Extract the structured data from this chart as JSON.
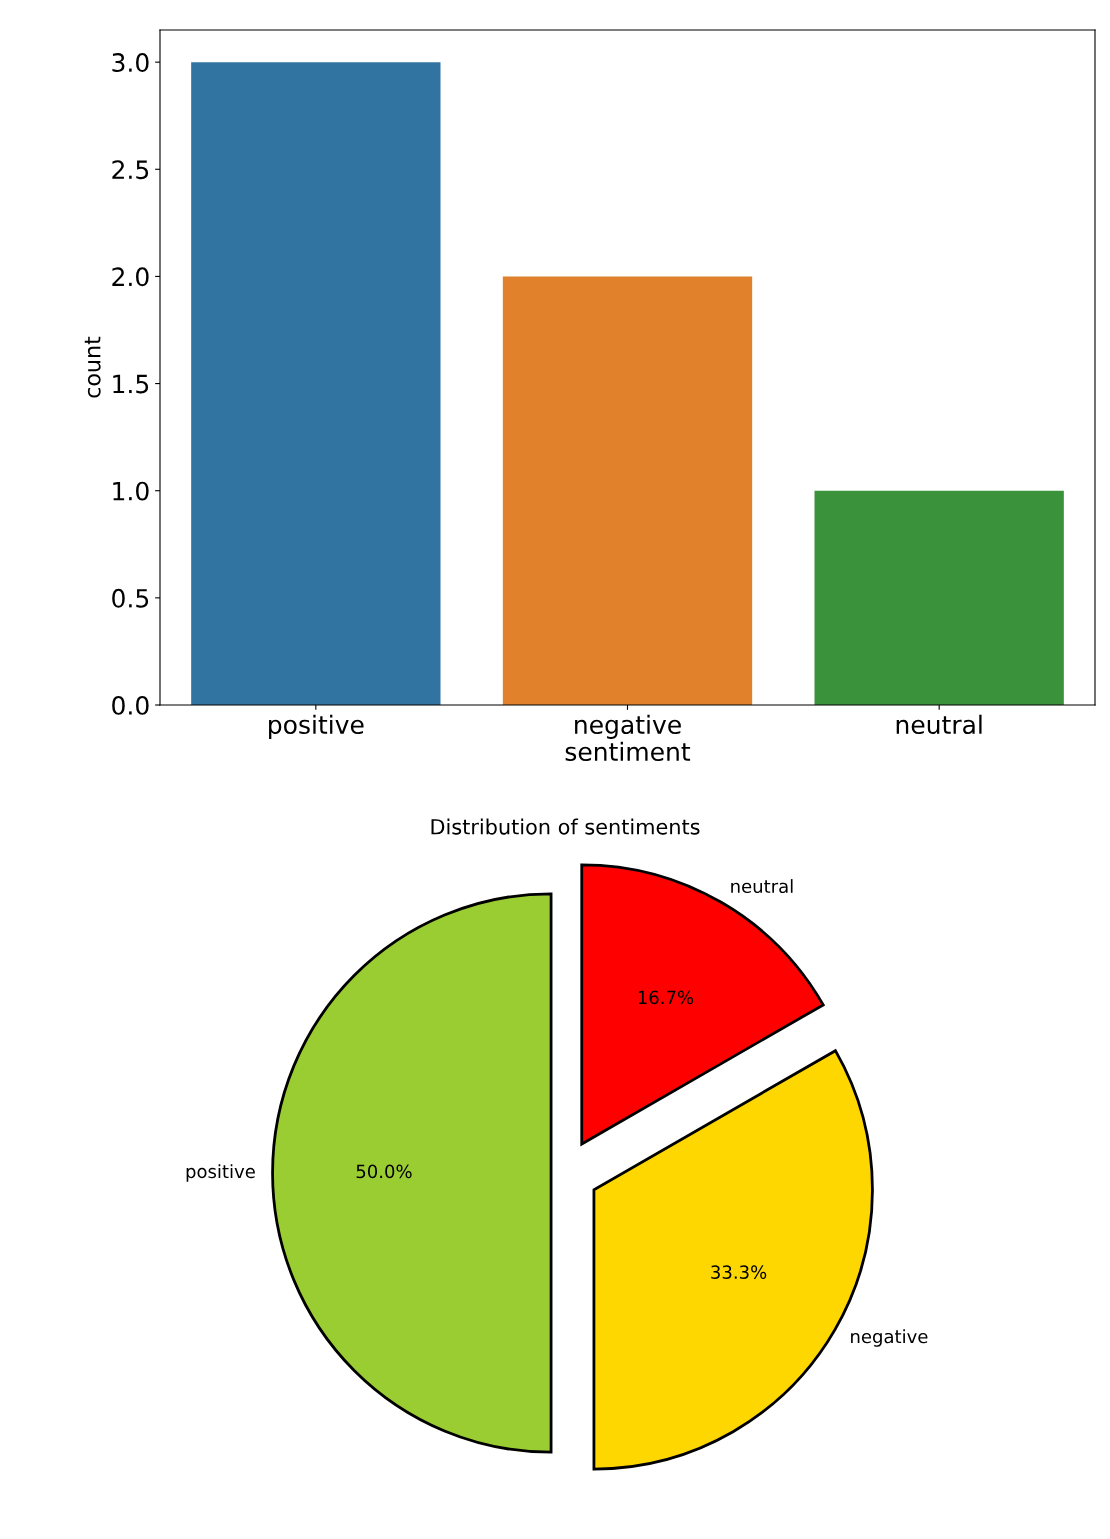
{
  "chart_data": [
    {
      "type": "bar",
      "xlabel": "sentiment",
      "ylabel": "count",
      "categories": [
        "positive",
        "negative",
        "neutral"
      ],
      "values": [
        3,
        2,
        1
      ],
      "colors": [
        "#3274a1",
        "#e1812c",
        "#3a923a"
      ],
      "ylim": [
        0,
        3.15
      ],
      "yticks": [
        {
          "value": 0,
          "label": "0.0"
        },
        {
          "value": 0.5,
          "label": "0.5"
        },
        {
          "value": 1,
          "label": "1.0"
        },
        {
          "value": 1.5,
          "label": "1.5"
        },
        {
          "value": 2,
          "label": "2.0"
        },
        {
          "value": 2.5,
          "label": "2.5"
        },
        {
          "value": 3,
          "label": "3.0"
        }
      ],
      "grid": false,
      "legend": false
    },
    {
      "type": "pie",
      "title": "Distribution of sentiments",
      "categories": [
        "positive",
        "negative",
        "neutral"
      ],
      "values": [
        50,
        33.3,
        16.7
      ],
      "colors": [
        "#9acd32",
        "#ffd700",
        "#ff0000"
      ],
      "value_labels": [
        "50.0%",
        "33.3%",
        "16.7%"
      ],
      "legend": false
    }
  ]
}
